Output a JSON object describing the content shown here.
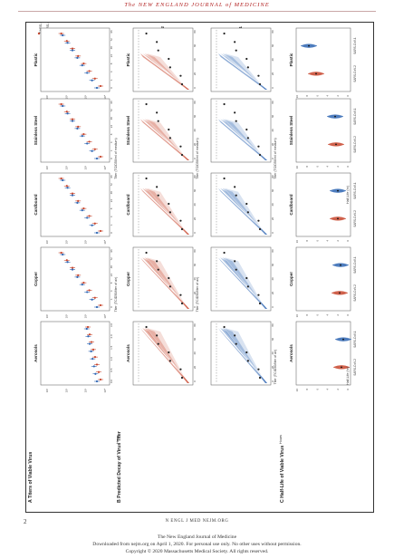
{
  "journal": {
    "header": "The NEW ENGLAND JOURNAL of MEDICINE"
  },
  "page_number": "2",
  "footer": {
    "running": "N ENGL J MED   NEJM.ORG",
    "line1": "The New England Journal of Medicine",
    "line2": "Downloaded from nejm.org on April 1, 2020. For personal use only. No other uses without permission.",
    "line3": "Copyright © 2020 Massachusetts Medical Society. All rights reserved."
  },
  "figure": {
    "panel_a": "A  Titers of Viable Virus",
    "panel_b": "B  Predicted Decay of Virus Titer",
    "panel_c": "C  Half-Life of Viable Virus",
    "columns": [
      "Aerosols",
      "Copper",
      "Cardboard",
      "Stainless Steel",
      "Plastic"
    ],
    "legend": [
      "SARS-CoV-2",
      "SARS-CoV-1"
    ],
    "row_labels": [
      "SARS-CoV-2",
      "SARS-CoV-1"
    ],
    "axis_titer_air": "Titer (TCID50/liter of air)",
    "axis_titer_medium": "Titer (TCID50/ml of medium)",
    "axis_hours": "Hours",
    "axis_halflife": "Half-Life (hr)",
    "aerosol_hours_ticks": [
      "0.0",
      "0.5",
      "1.0",
      "1.5",
      "2.0",
      "3.0"
    ],
    "surface_hours_ticks": [
      "0",
      "1",
      "4",
      "8",
      "24",
      "48",
      "72",
      "96"
    ],
    "b_hours_ticks": [
      "0",
      "20",
      "40",
      "60",
      "80"
    ],
    "titer_ticks": [
      "10¹",
      "10²",
      "10³",
      "10⁴"
    ],
    "halflife_ticks": [
      "0",
      "2",
      "4",
      "6",
      "8",
      "10"
    ],
    "colors": {
      "sars_cov_2": "#c8472e",
      "sars_cov_1": "#2f66b3"
    }
  }
}
